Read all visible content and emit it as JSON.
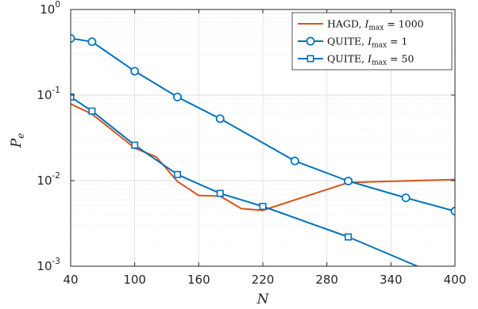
{
  "chart_data": {
    "type": "line",
    "xlabel": "N",
    "ylabel": "P_e",
    "xlim": [
      40,
      400
    ],
    "ylim": [
      0.001,
      1
    ],
    "yscale": "log",
    "grid": true,
    "legend_position": "top-right",
    "x_ticks": [
      40,
      100,
      160,
      220,
      280,
      340,
      400
    ],
    "x_tick_labels": [
      "40",
      "100",
      "160",
      "220",
      "280",
      "340",
      "400"
    ],
    "y_ticks": [
      0.001,
      0.01,
      0.1,
      1
    ],
    "y_tick_labels": [
      {
        "base": "10",
        "exp": "-3"
      },
      {
        "base": "10",
        "exp": "-2"
      },
      {
        "base": "10",
        "exp": "-1"
      },
      {
        "base": "10",
        "exp": "0"
      }
    ],
    "series": [
      {
        "name": "HAGD, I_max = 1000",
        "legend_label": {
          "pre": "HAGD, ",
          "var": "I",
          "sub": "max",
          "post": " = 1000"
        },
        "color": "#D95319",
        "marker": "none",
        "x": [
          40,
          60,
          80,
          100,
          120,
          140,
          160,
          180,
          200,
          220,
          300,
          400
        ],
        "y": [
          0.079,
          0.06,
          0.038,
          0.024,
          0.019,
          0.0098,
          0.0067,
          0.0066,
          0.0047,
          0.0045,
          0.0095,
          0.0103
        ]
      },
      {
        "name": "QUITE, I_max = 1",
        "legend_label": {
          "pre": "QUITE, ",
          "var": "I",
          "sub": "max",
          "post": " = 1"
        },
        "color": "#0072BD",
        "marker": "circle",
        "x": [
          40,
          60,
          100,
          140,
          180,
          250,
          300,
          354,
          400
        ],
        "y": [
          0.46,
          0.42,
          0.19,
          0.095,
          0.053,
          0.017,
          0.0099,
          0.0063,
          0.0044
        ]
      },
      {
        "name": "QUITE, I_max = 50",
        "legend_label": {
          "pre": "QUITE, ",
          "var": "I",
          "sub": "max",
          "post": " = 50"
        },
        "color": "#0072BD",
        "marker": "square",
        "x": [
          40,
          60,
          100,
          140,
          180,
          220,
          300,
          400
        ],
        "y": [
          0.095,
          0.065,
          0.026,
          0.0118,
          0.0071,
          0.005,
          0.0022,
          0.00065
        ]
      }
    ]
  }
}
